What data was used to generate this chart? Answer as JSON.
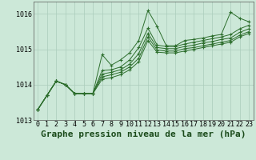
{
  "title": "Graphe pression niveau de la mer (hPa)",
  "background_color": "#cce8d8",
  "grid_color": "#aaccbb",
  "line_color": "#2d6e2d",
  "marker_color": "#2d6e2d",
  "ylim": [
    1013.0,
    1016.35
  ],
  "xlim": [
    -0.5,
    23.5
  ],
  "yticks": [
    1013,
    1014,
    1015,
    1016
  ],
  "xticks": [
    0,
    1,
    2,
    3,
    4,
    5,
    6,
    7,
    8,
    9,
    10,
    11,
    12,
    13,
    14,
    15,
    16,
    17,
    18,
    19,
    20,
    21,
    22,
    23
  ],
  "series": [
    [
      1013.3,
      1013.7,
      1014.1,
      1014.0,
      1013.75,
      1013.75,
      1013.75,
      1014.85,
      1014.55,
      1014.7,
      1014.9,
      1015.25,
      1016.1,
      1015.65,
      1015.1,
      1015.1,
      1015.25,
      1015.28,
      1015.32,
      1015.38,
      1015.42,
      1016.05,
      1015.88,
      1015.78
    ],
    [
      1013.3,
      1013.7,
      1014.1,
      1014.0,
      1013.75,
      1013.75,
      1013.75,
      1014.4,
      1014.42,
      1014.5,
      1014.7,
      1015.05,
      1015.6,
      1015.12,
      1015.08,
      1015.08,
      1015.15,
      1015.2,
      1015.25,
      1015.3,
      1015.35,
      1015.42,
      1015.58,
      1015.68
    ],
    [
      1013.3,
      1013.7,
      1014.1,
      1014.0,
      1013.75,
      1013.75,
      1013.75,
      1014.3,
      1014.35,
      1014.42,
      1014.58,
      1014.88,
      1015.45,
      1015.05,
      1015.02,
      1015.02,
      1015.08,
      1015.12,
      1015.18,
      1015.22,
      1015.28,
      1015.32,
      1015.48,
      1015.58
    ],
    [
      1013.3,
      1013.7,
      1014.1,
      1014.0,
      1013.75,
      1013.75,
      1013.75,
      1014.22,
      1014.28,
      1014.35,
      1014.5,
      1014.75,
      1015.35,
      1014.98,
      1014.95,
      1014.95,
      1015.02,
      1015.05,
      1015.1,
      1015.15,
      1015.2,
      1015.25,
      1015.4,
      1015.5
    ],
    [
      1013.3,
      1013.7,
      1014.1,
      1014.0,
      1013.75,
      1013.75,
      1013.75,
      1014.15,
      1014.2,
      1014.28,
      1014.42,
      1014.65,
      1015.25,
      1014.92,
      1014.9,
      1014.9,
      1014.95,
      1015.0,
      1015.05,
      1015.1,
      1015.15,
      1015.2,
      1015.35,
      1015.45
    ]
  ],
  "title_fontsize": 8,
  "tick_fontsize": 6
}
